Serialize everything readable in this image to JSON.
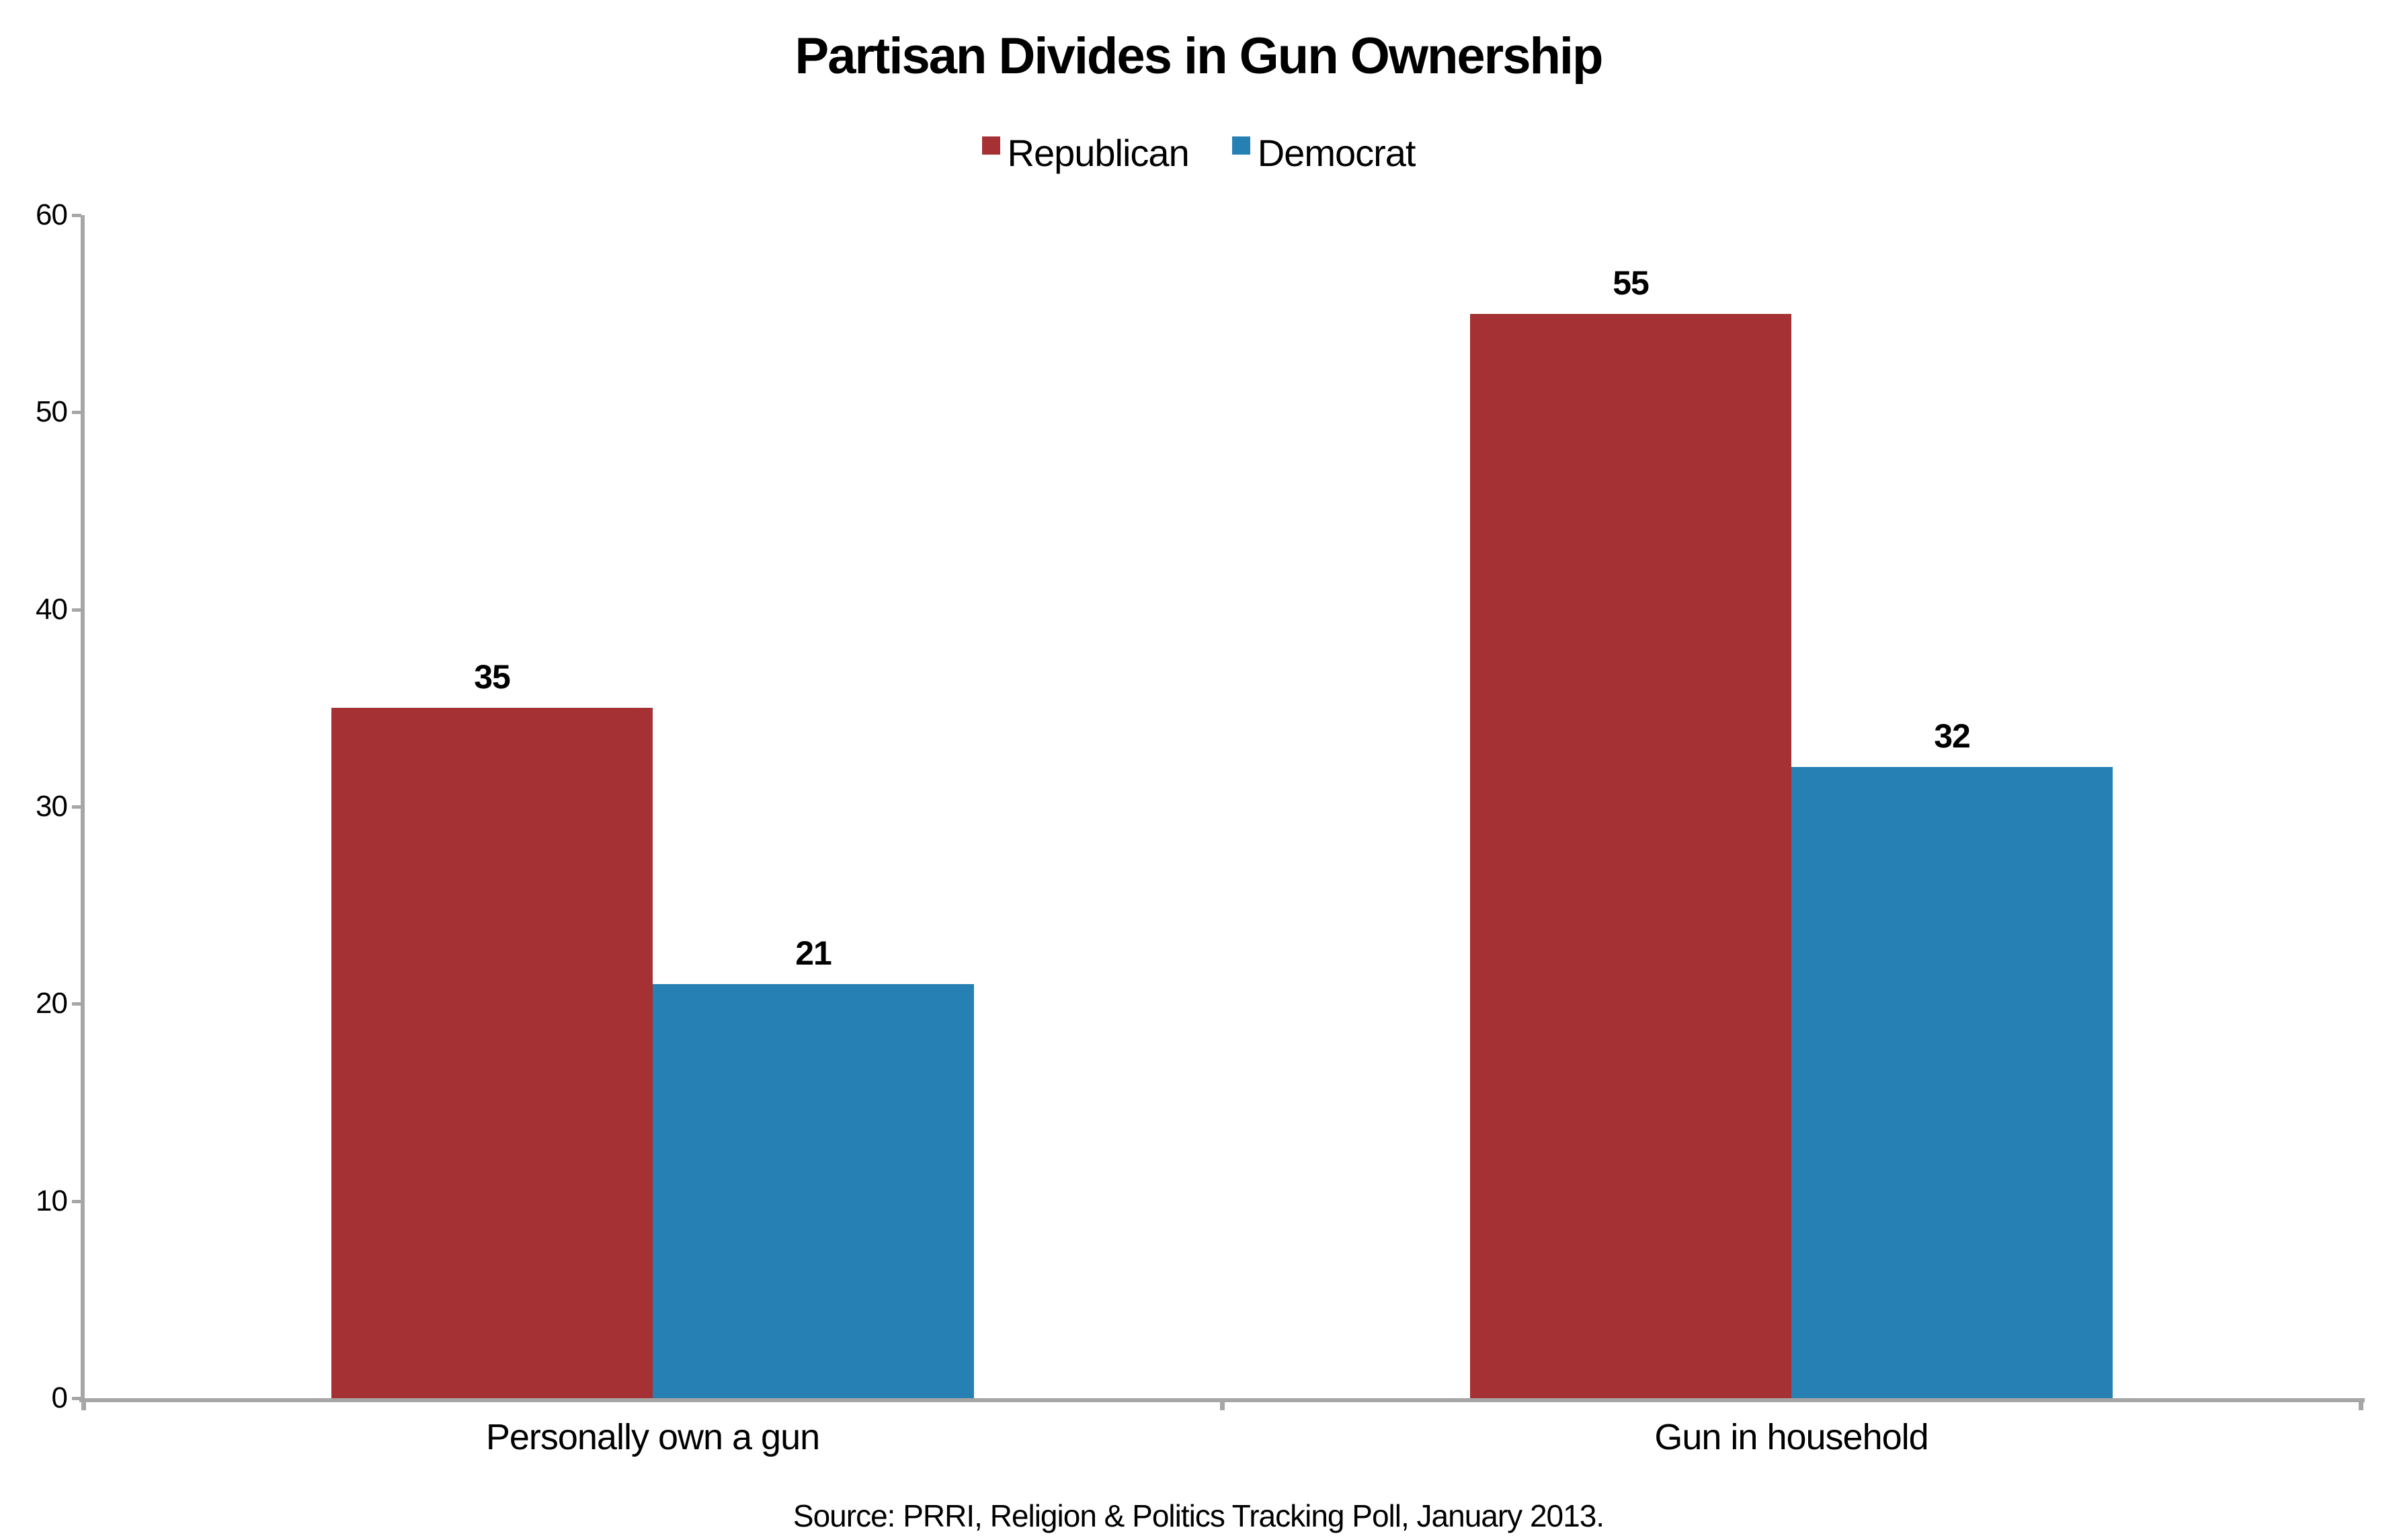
{
  "chart": {
    "title": "Partisan Divides in Gun Ownership",
    "source": "Source: PRRI, Religion & Politics Tracking Poll, January 2013."
  },
  "chart_data": {
    "type": "bar",
    "title": "Partisan Divides in Gun Ownership",
    "categories": [
      "Personally own a gun",
      "Gun in household"
    ],
    "series": [
      {
        "name": "Republican",
        "color": "#A53134",
        "values": [
          35,
          55
        ]
      },
      {
        "name": "Democrat",
        "color": "#2780B4",
        "values": [
          21,
          32
        ]
      }
    ],
    "xlabel": "",
    "ylabel": "",
    "ylim": [
      0,
      60
    ],
    "yticks": [
      0,
      10,
      20,
      30,
      40,
      50,
      60
    ],
    "grid": false,
    "legend_position": "top-center",
    "value_labels": true,
    "axis_color": "#A6A6A6",
    "source": "Source: PRRI, Religion & Politics Tracking Poll, January 2013."
  }
}
